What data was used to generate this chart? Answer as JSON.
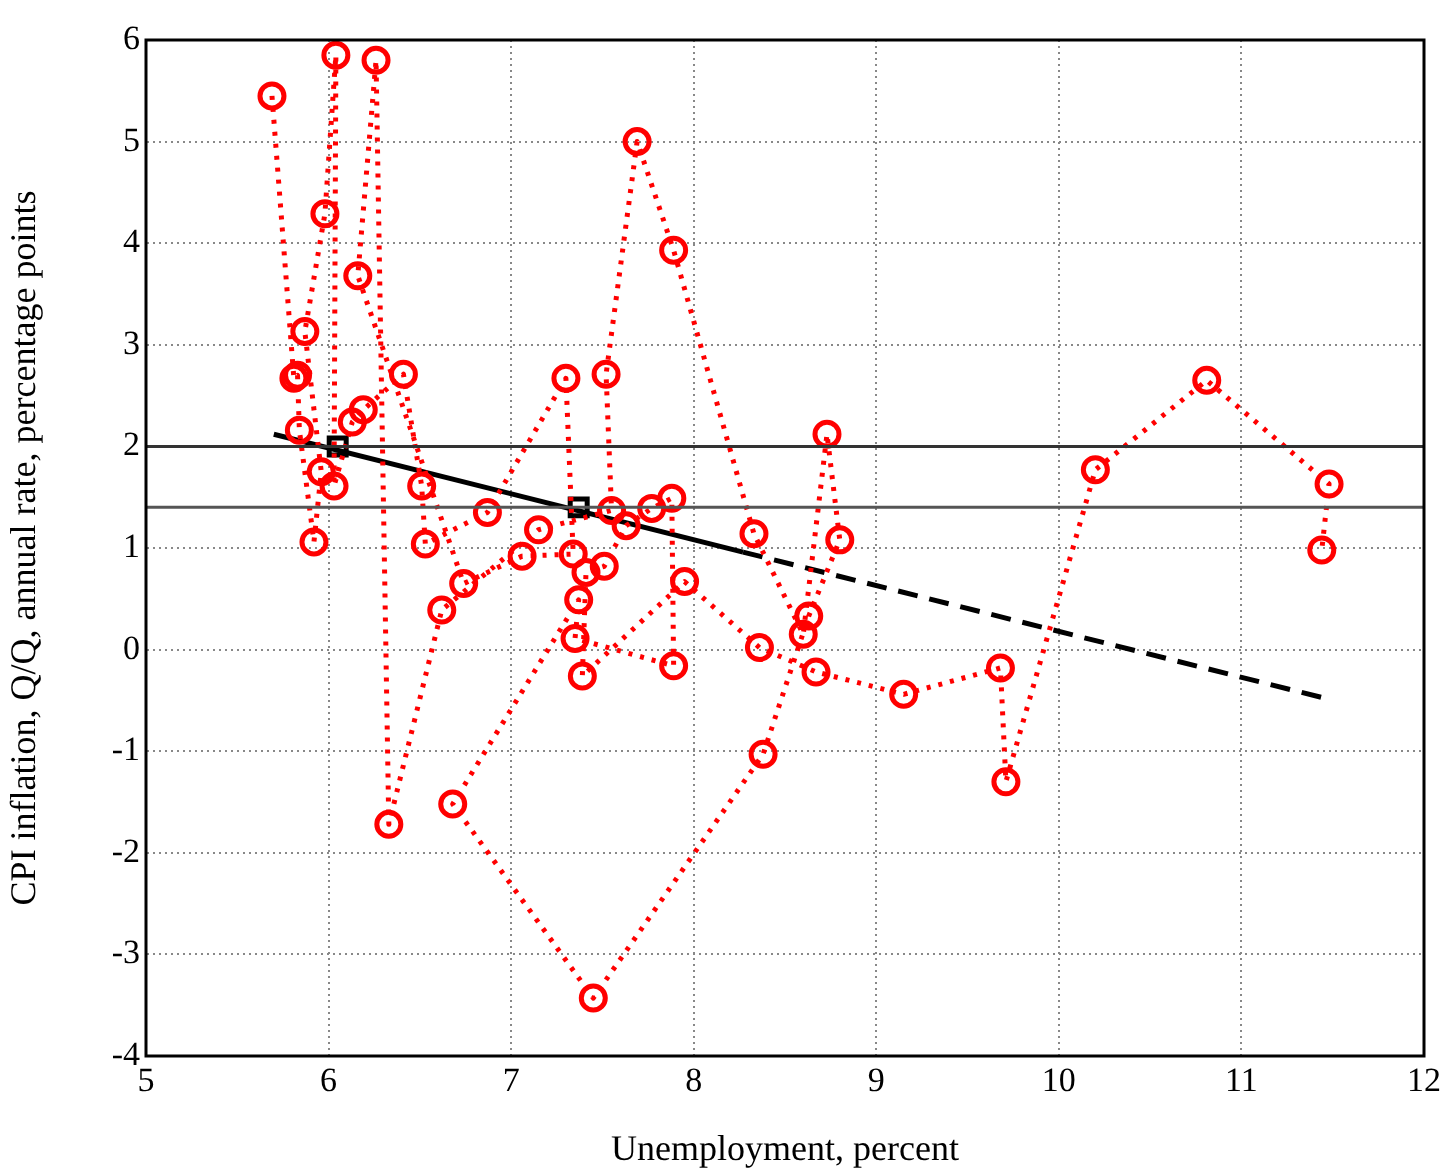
{
  "chart_data": {
    "type": "line",
    "xlabel": "Unemployment, percent",
    "ylabel": "CPI inflation, Q/Q, annual rate, percentage points",
    "xlim": [
      5,
      12
    ],
    "ylim": [
      -4,
      6
    ],
    "xticks": [
      5,
      6,
      7,
      8,
      9,
      10,
      11,
      12
    ],
    "yticks": [
      -4,
      -3,
      -2,
      -1,
      0,
      1,
      2,
      3,
      4,
      5,
      6
    ],
    "grid": true,
    "legend": false,
    "ref_lines": [
      {
        "axis": "y",
        "value": 2,
        "color": "#333333"
      },
      {
        "axis": "y",
        "value": 1.4,
        "color": "#555555"
      }
    ],
    "series": [
      {
        "color": "#ff0000",
        "marker": "circle",
        "line_style": "dotted",
        "x": [
          5.69,
          5.81,
          5.83,
          5.84,
          5.92,
          5.96,
          5.87,
          5.98,
          6.04,
          6.03,
          6.13,
          6.19,
          6.41,
          6.51,
          6.53,
          6.87,
          7.3,
          7.34,
          7.06,
          6.74,
          6.16,
          6.26,
          6.33,
          6.62,
          7.15,
          7.55,
          7.52,
          7.69,
          7.89,
          8.33,
          8.6,
          8.73,
          8.8,
          8.63,
          8.38,
          7.45,
          6.68,
          7.37,
          7.35,
          7.89,
          7.88,
          7.77,
          7.63,
          7.51,
          7.41,
          7.39,
          7.95,
          8.36,
          8.67,
          9.15,
          9.68,
          9.71,
          10.2,
          10.81,
          11.48,
          11.44
        ],
        "values": [
          5.45,
          2.67,
          2.7,
          2.16,
          1.06,
          1.75,
          3.13,
          4.29,
          5.85,
          1.61,
          2.24,
          2.36,
          2.71,
          1.61,
          1.04,
          1.35,
          2.67,
          0.94,
          0.92,
          0.65,
          3.68,
          5.8,
          -1.72,
          0.39,
          1.18,
          1.37,
          2.71,
          5.0,
          3.93,
          1.14,
          0.15,
          2.12,
          1.08,
          0.33,
          -1.03,
          -3.43,
          -1.52,
          0.49,
          0.11,
          -0.16,
          1.49,
          1.39,
          1.22,
          0.82,
          0.76,
          -0.26,
          0.67,
          0.02,
          -0.22,
          -0.44,
          -0.18,
          -1.3,
          1.77,
          2.65,
          1.63,
          0.98
        ]
      },
      {
        "type": "line",
        "color": "#000000",
        "marker": "none",
        "line_style": "solid",
        "x": [
          5.7,
          8.27
        ],
        "values": [
          2.12,
          0.96
        ]
      },
      {
        "type": "line",
        "color": "#000000",
        "marker": "none",
        "line_style": "dashed",
        "x": [
          8.27,
          11.46
        ],
        "values": [
          0.96,
          -0.48
        ]
      },
      {
        "type": "scatter",
        "color": "#000000",
        "marker": "square",
        "x": [
          6.05,
          7.37
        ],
        "values": [
          2.0,
          1.4
        ]
      }
    ]
  }
}
